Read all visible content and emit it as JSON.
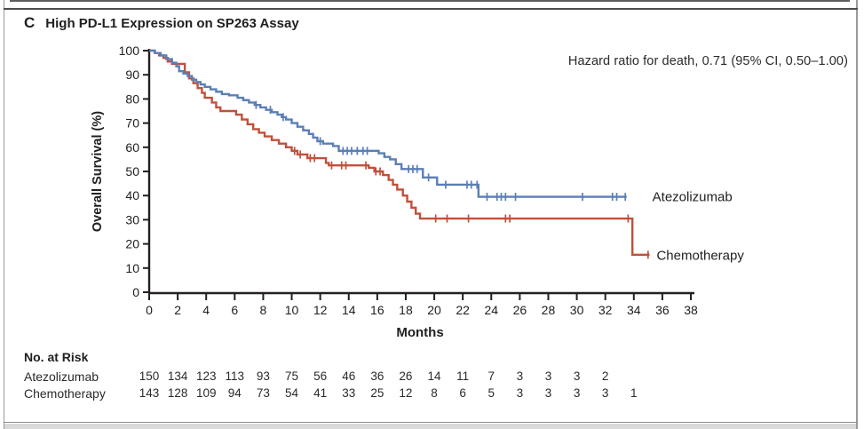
{
  "panel": {
    "letter": "C",
    "title": "High PD-L1 Expression on SP263 Assay"
  },
  "annotation": "Hazard ratio for death, 0.71 (95% CI, 0.50–1.00)",
  "colors": {
    "atezolizumab": "#5b7fb5",
    "chemotherapy": "#c1503b",
    "axis": "#231f20"
  },
  "chart_data": {
    "type": "line",
    "subtype": "kaplan-meier-step",
    "title": "High PD-L1 Expression on SP263 Assay",
    "xlabel": "Months",
    "ylabel": "Overall Survival (%)",
    "xlim": [
      0,
      38
    ],
    "ylim": [
      0,
      100
    ],
    "xticks": [
      0,
      2,
      4,
      6,
      8,
      10,
      12,
      14,
      16,
      18,
      20,
      22,
      24,
      26,
      28,
      30,
      32,
      34,
      36,
      38
    ],
    "yticks": [
      0,
      10,
      20,
      30,
      40,
      50,
      60,
      70,
      80,
      90,
      100
    ],
    "grid": false,
    "legend_position": "end-of-line-labels",
    "series": [
      {
        "name": "Chemotherapy",
        "color": "#c1503b",
        "steps": [
          [
            0,
            100
          ],
          [
            0.4,
            99
          ],
          [
            0.7,
            98
          ],
          [
            1,
            97
          ],
          [
            1.3,
            95.5
          ],
          [
            1.6,
            94.5
          ],
          [
            2.5,
            91
          ],
          [
            2.8,
            88.5
          ],
          [
            3.1,
            86.5
          ],
          [
            3.4,
            84.5
          ],
          [
            3.7,
            82.5
          ],
          [
            3.9,
            80.5
          ],
          [
            4.4,
            78.5
          ],
          [
            4.7,
            76.5
          ],
          [
            5,
            75
          ],
          [
            6.1,
            73.5
          ],
          [
            6.5,
            71.5
          ],
          [
            6.9,
            69.5
          ],
          [
            7.3,
            67.5
          ],
          [
            7.7,
            66
          ],
          [
            8.1,
            64.5
          ],
          [
            8.6,
            63
          ],
          [
            9.1,
            61.5
          ],
          [
            9.6,
            60
          ],
          [
            10,
            58.5
          ],
          [
            10.4,
            57
          ],
          [
            11.1,
            55.5
          ],
          [
            12.4,
            53.5
          ],
          [
            12.6,
            52.5
          ],
          [
            15.4,
            51.5
          ],
          [
            15.8,
            50
          ],
          [
            16.4,
            48.5
          ],
          [
            16.8,
            46.5
          ],
          [
            17.1,
            44.5
          ],
          [
            17.4,
            42.5
          ],
          [
            17.8,
            40
          ],
          [
            18.1,
            37.5
          ],
          [
            18.4,
            35
          ],
          [
            18.7,
            32.5
          ],
          [
            19,
            30.5
          ],
          [
            33.9,
            15.5
          ]
        ],
        "end_month": 35.1,
        "censors": [
          10.2,
          10.6,
          11.3,
          11.6,
          12.8,
          13.5,
          13.8,
          15.2,
          15.9,
          16.2,
          20.1,
          20.9,
          22.4,
          25,
          25.3,
          33.6,
          35
        ],
        "label": {
          "text": "Chemotherapy",
          "month": 35.6,
          "pct": 15.2
        }
      },
      {
        "name": "Atezolizumab",
        "color": "#5b7fb5",
        "steps": [
          [
            0,
            100
          ],
          [
            0.4,
            99
          ],
          [
            0.8,
            98
          ],
          [
            1.2,
            96.5
          ],
          [
            1.6,
            95
          ],
          [
            1.9,
            93.5
          ],
          [
            2.1,
            91.5
          ],
          [
            2.4,
            90.5
          ],
          [
            2.7,
            89.5
          ],
          [
            3,
            88
          ],
          [
            3.3,
            87
          ],
          [
            3.6,
            86
          ],
          [
            3.9,
            85
          ],
          [
            4.3,
            84
          ],
          [
            4.7,
            83
          ],
          [
            5.1,
            82
          ],
          [
            5.6,
            81.5
          ],
          [
            6.2,
            80.5
          ],
          [
            6.6,
            79.5
          ],
          [
            7,
            78.5
          ],
          [
            7.4,
            77.5
          ],
          [
            7.8,
            76.5
          ],
          [
            8.2,
            75.5
          ],
          [
            8.6,
            74.5
          ],
          [
            9,
            73.5
          ],
          [
            9.3,
            72.5
          ],
          [
            9.6,
            71.5
          ],
          [
            10,
            70
          ],
          [
            10.4,
            68.5
          ],
          [
            10.8,
            67
          ],
          [
            11.2,
            65.5
          ],
          [
            11.5,
            64
          ],
          [
            11.8,
            62.5
          ],
          [
            12.2,
            61.5
          ],
          [
            12.9,
            60.5
          ],
          [
            13.3,
            58.5
          ],
          [
            16.1,
            57.5
          ],
          [
            16.5,
            56
          ],
          [
            16.9,
            55
          ],
          [
            17.3,
            53
          ],
          [
            17.7,
            51
          ],
          [
            19.2,
            47.5
          ],
          [
            20.2,
            44.5
          ],
          [
            23.1,
            39.5
          ]
        ],
        "end_month": 33.5,
        "censors": [
          7.5,
          8.5,
          9.4,
          12,
          13.6,
          13.9,
          14.2,
          14.6,
          15,
          15.3,
          18.2,
          18.5,
          18.8,
          19.6,
          20.8,
          22.3,
          22.6,
          23,
          23.7,
          24.4,
          24.7,
          25,
          25.7,
          30.4,
          32.5,
          32.8,
          33.4
        ],
        "label": {
          "text": "Atezolizumab",
          "month": 35.3,
          "pct": 39.5
        }
      }
    ],
    "risk_table": {
      "title": "No. at Risk",
      "rows": [
        {
          "name": "Atezolizumab",
          "values": [
            150,
            134,
            123,
            113,
            93,
            75,
            56,
            46,
            36,
            26,
            14,
            11,
            7,
            3,
            3,
            3,
            2
          ]
        },
        {
          "name": "Chemotherapy",
          "values": [
            143,
            128,
            109,
            94,
            73,
            54,
            41,
            33,
            25,
            12,
            8,
            6,
            5,
            3,
            3,
            3,
            3,
            1
          ]
        }
      ]
    }
  }
}
